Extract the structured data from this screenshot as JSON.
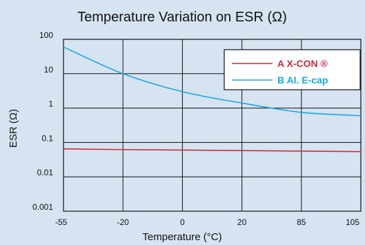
{
  "chart_data": {
    "type": "line",
    "title": "Temperature Variation on ESR (Ω)",
    "xlabel": "Temperature (°C)",
    "ylabel": "ESR (Ω)",
    "x": [
      "-55",
      "-20",
      "0",
      "20",
      "85",
      "105"
    ],
    "y_scale": "log",
    "ylim": [
      0.001,
      100
    ],
    "y_ticks": [
      "100",
      "10",
      "1",
      "0.1",
      "0.01",
      "0.001"
    ],
    "grid": true,
    "legend_position": "top-right",
    "series": [
      {
        "name": "A  X-CON ®",
        "color": "#cc2a3b",
        "values": [
          0.065,
          0.062,
          0.06,
          0.058,
          0.056,
          0.054
        ]
      },
      {
        "name": "B  Al. E-cap",
        "color": "#17a9e1",
        "values": [
          60,
          10,
          3,
          1.4,
          0.75,
          0.6
        ]
      }
    ]
  }
}
